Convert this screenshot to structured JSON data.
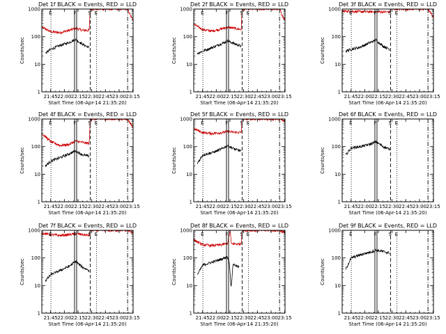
{
  "chart_data": [
    {
      "type": "line",
      "title": "Det 1f BLACK = Events, RED = LLD",
      "ylabel": "Counts/sec",
      "xlabel": "Start Time (06-Apr-14 21:35:20)",
      "x_ticks": [
        "21:45",
        "22:00",
        "22:15",
        "22:30",
        "22:45",
        "23:00",
        "23:15"
      ],
      "y_ticks": [
        "1",
        "10",
        "100",
        "1000"
      ],
      "y_scale": "log",
      "ylim": [
        1,
        1000
      ],
      "xlim_minutes": [
        0,
        100
      ],
      "marker_letters": [
        "E",
        "F",
        "S",
        "E"
      ],
      "marker_minutes": [
        10,
        37,
        53,
        60
      ],
      "marker_styles": [
        "dotted",
        "solid",
        "dashed",
        "dotted"
      ],
      "end_line_minute": 94,
      "series": [
        {
          "color": "#000000",
          "trend": [
            [
              4,
              25
            ],
            [
              10,
              35
            ],
            [
              20,
              48
            ],
            [
              30,
              62
            ],
            [
              37,
              80
            ],
            [
              45,
              52
            ],
            [
              52,
              40
            ]
          ]
        },
        {
          "color": "#cc0000",
          "trend": [
            [
              0,
              220
            ],
            [
              10,
              150
            ],
            [
              20,
              140
            ],
            [
              30,
              170
            ],
            [
              37,
              200
            ],
            [
              45,
              170
            ],
            [
              52,
              170
            ],
            [
              53,
              1000
            ],
            [
              94,
              1000
            ],
            [
              97,
              600
            ],
            [
              100,
              400
            ]
          ]
        }
      ]
    },
    {
      "type": "line",
      "title": "Det 2f BLACK = Events, RED = LLD",
      "ylabel": "Counts/sec",
      "xlabel": "Start Time (06-Apr-14 21:35:20)",
      "x_ticks": [
        "21:45",
        "22:00",
        "22:15",
        "22:30",
        "22:45",
        "23:00",
        "23:15"
      ],
      "y_ticks": [
        "1",
        "10",
        "100",
        "1000"
      ],
      "y_scale": "log",
      "ylim": [
        1,
        1000
      ],
      "xlim_minutes": [
        0,
        100
      ],
      "marker_letters": [
        "E",
        "F",
        "S",
        "E"
      ],
      "marker_minutes": [
        10,
        37,
        53,
        60
      ],
      "marker_styles": [
        "dotted",
        "solid",
        "dashed",
        "dotted"
      ],
      "end_line_minute": 94,
      "series": [
        {
          "color": "#000000",
          "trend": [
            [
              4,
              25
            ],
            [
              10,
              30
            ],
            [
              20,
              40
            ],
            [
              30,
              55
            ],
            [
              37,
              70
            ],
            [
              45,
              55
            ],
            [
              52,
              45
            ]
          ]
        },
        {
          "color": "#cc0000",
          "trend": [
            [
              0,
              280
            ],
            [
              10,
              180
            ],
            [
              20,
              160
            ],
            [
              30,
              190
            ],
            [
              37,
              220
            ],
            [
              45,
              200
            ],
            [
              52,
              180
            ],
            [
              53,
              1000
            ],
            [
              94,
              1000
            ],
            [
              97,
              600
            ],
            [
              100,
              400
            ]
          ]
        }
      ]
    },
    {
      "type": "line",
      "title": "Det 3f BLACK = Events, RED = LLD",
      "ylabel": "Counts/sec",
      "xlabel": "Start Time (06-Apr-14 21:35:20)",
      "x_ticks": [
        "21:45",
        "22:00",
        "22:15",
        "22:30",
        "22:45",
        "23:00",
        "23:15"
      ],
      "y_ticks": [
        "1",
        "10",
        "100",
        "1000"
      ],
      "y_scale": "log",
      "ylim": [
        1,
        1000
      ],
      "xlim_minutes": [
        0,
        100
      ],
      "marker_letters": [
        "E",
        "F",
        "S",
        "E"
      ],
      "marker_minutes": [
        10,
        37,
        53,
        60
      ],
      "marker_styles": [
        "dotted",
        "solid",
        "dashed",
        "dotted"
      ],
      "end_line_minute": 94,
      "series": [
        {
          "color": "#000000",
          "trend": [
            [
              4,
              30
            ],
            [
              10,
              35
            ],
            [
              20,
              42
            ],
            [
              30,
              60
            ],
            [
              37,
              75
            ],
            [
              45,
              45
            ],
            [
              52,
              35
            ]
          ]
        },
        {
          "color": "#cc0000",
          "trend": [
            [
              0,
              850
            ],
            [
              20,
              800
            ],
            [
              37,
              800
            ],
            [
              52,
              780
            ],
            [
              53,
              1000
            ],
            [
              94,
              1000
            ],
            [
              100,
              500
            ]
          ]
        }
      ]
    },
    {
      "type": "line",
      "title": "Det 4f BLACK = Events, RED = LLD",
      "ylabel": "Counts/sec",
      "xlabel": "Start Time (06-Apr-14 21:35:20)",
      "x_ticks": [
        "21:45",
        "22:00",
        "22:15",
        "22:30",
        "22:45",
        "23:00",
        "23:15"
      ],
      "y_ticks": [
        "1",
        "10",
        "100",
        "1000"
      ],
      "y_scale": "log",
      "ylim": [
        1,
        1000
      ],
      "xlim_minutes": [
        0,
        100
      ],
      "marker_letters": [
        "E",
        "F",
        "S",
        "E"
      ],
      "marker_minutes": [
        10,
        37,
        53,
        60
      ],
      "marker_styles": [
        "dotted",
        "solid",
        "dashed",
        "dotted"
      ],
      "end_line_minute": 94,
      "series": [
        {
          "color": "#000000",
          "trend": [
            [
              4,
              20
            ],
            [
              10,
              30
            ],
            [
              20,
              40
            ],
            [
              30,
              55
            ],
            [
              37,
              70
            ],
            [
              45,
              50
            ],
            [
              52,
              45
            ]
          ]
        },
        {
          "color": "#cc0000",
          "trend": [
            [
              0,
              300
            ],
            [
              10,
              150
            ],
            [
              20,
              110
            ],
            [
              30,
              120
            ],
            [
              37,
              160
            ],
            [
              45,
              140
            ],
            [
              52,
              130
            ],
            [
              53,
              1000
            ],
            [
              94,
              1000
            ],
            [
              97,
              700
            ],
            [
              100,
              500
            ]
          ]
        }
      ]
    },
    {
      "type": "line",
      "title": "Det 5f BLACK = Events, RED = LLD",
      "ylabel": "Counts/sec",
      "xlabel": "Start Time (06-Apr-14 21:35:20)",
      "x_ticks": [
        "21:45",
        "22:00",
        "22:15",
        "22:30",
        "22:45",
        "23:00",
        "23:15"
      ],
      "y_ticks": [
        "1",
        "10",
        "100",
        "1000"
      ],
      "y_scale": "log",
      "ylim": [
        1,
        1000
      ],
      "xlim_minutes": [
        0,
        100
      ],
      "marker_letters": [
        "E",
        "F",
        "S",
        "E"
      ],
      "marker_minutes": [
        10,
        37,
        53,
        60
      ],
      "marker_styles": [
        "dotted",
        "solid",
        "dashed",
        "dotted"
      ],
      "end_line_minute": 94,
      "series": [
        {
          "color": "#000000",
          "trend": [
            [
              4,
              25
            ],
            [
              10,
              50
            ],
            [
              20,
              60
            ],
            [
              30,
              80
            ],
            [
              37,
              110
            ],
            [
              45,
              80
            ],
            [
              52,
              70
            ]
          ]
        },
        {
          "color": "#cc0000",
          "trend": [
            [
              0,
              450
            ],
            [
              10,
              320
            ],
            [
              20,
              300
            ],
            [
              30,
              320
            ],
            [
              37,
              350
            ],
            [
              45,
              330
            ],
            [
              52,
              320
            ],
            [
              53,
              1000
            ],
            [
              94,
              1000
            ],
            [
              100,
              800
            ]
          ]
        }
      ]
    },
    {
      "type": "line",
      "title": "Det 6f BLACK = Events, RED = LLD",
      "ylabel": "Counts/sec",
      "xlabel": "Start Time (06-Apr-14 21:35:20)",
      "x_ticks": [
        "21:45",
        "22:00",
        "22:15",
        "22:30",
        "22:45",
        "23:00",
        "23:15"
      ],
      "y_ticks": [
        "1",
        "10",
        "100",
        "1000"
      ],
      "y_scale": "log",
      "ylim": [
        1,
        1000
      ],
      "xlim_minutes": [
        0,
        100
      ],
      "marker_letters": [
        "E",
        "F",
        "S",
        "E"
      ],
      "marker_minutes": [
        10,
        37,
        53,
        60
      ],
      "marker_styles": [
        "dotted",
        "solid",
        "dashed",
        "dotted"
      ],
      "end_line_minute": 94,
      "series": [
        {
          "color": "#000000",
          "trend": [
            [
              4,
              50
            ],
            [
              10,
              90
            ],
            [
              20,
              100
            ],
            [
              30,
              120
            ],
            [
              37,
              150
            ],
            [
              45,
              100
            ],
            [
              52,
              80
            ]
          ]
        }
      ]
    },
    {
      "type": "line",
      "title": "Det 7f BLACK = Events, RED = LLD",
      "ylabel": "Counts/sec",
      "xlabel": "Start Time (06-Apr-14 21:35:20)",
      "x_ticks": [
        "21:45",
        "22:00",
        "22:15",
        "22:30",
        "22:45",
        "23:00",
        "23:15"
      ],
      "y_ticks": [
        "1",
        "10",
        "100",
        "1000"
      ],
      "y_scale": "log",
      "ylim": [
        1,
        1000
      ],
      "xlim_minutes": [
        0,
        100
      ],
      "marker_letters": [
        "E",
        "F",
        "S",
        "E"
      ],
      "marker_minutes": [
        10,
        37,
        53,
        60
      ],
      "marker_styles": [
        "dotted",
        "solid",
        "dashed",
        "dotted"
      ],
      "end_line_minute": 94,
      "series": [
        {
          "color": "#000000",
          "trend": [
            [
              4,
              15
            ],
            [
              10,
              25
            ],
            [
              20,
              35
            ],
            [
              30,
              50
            ],
            [
              37,
              75
            ],
            [
              45,
              45
            ],
            [
              52,
              35
            ]
          ]
        },
        {
          "color": "#cc0000",
          "trend": [
            [
              0,
              800
            ],
            [
              10,
              700
            ],
            [
              20,
              650
            ],
            [
              30,
              700
            ],
            [
              37,
              750
            ],
            [
              45,
              700
            ],
            [
              52,
              650
            ],
            [
              53,
              1000
            ],
            [
              94,
              1000
            ],
            [
              100,
              800
            ]
          ]
        }
      ]
    },
    {
      "type": "line",
      "title": "Det 8f BLACK = Events, RED = LLD",
      "ylabel": "Counts/sec",
      "xlabel": "Start Time (06-Apr-14 21:35:20)",
      "x_ticks": [
        "21:45",
        "22:00",
        "22:15",
        "22:30",
        "22:45",
        "23:00",
        "23:15"
      ],
      "y_ticks": [
        "1",
        "10",
        "100",
        "1000"
      ],
      "y_scale": "log",
      "ylim": [
        1,
        1000
      ],
      "xlim_minutes": [
        0,
        100
      ],
      "marker_letters": [
        "E",
        "F",
        "S",
        "E"
      ],
      "marker_minutes": [
        10,
        37,
        53,
        60
      ],
      "marker_styles": [
        "dotted",
        "solid",
        "dashed",
        "dotted"
      ],
      "end_line_minute": 94,
      "series": [
        {
          "color": "#000000",
          "trend": [
            [
              4,
              25
            ],
            [
              10,
              55
            ],
            [
              20,
              70
            ],
            [
              30,
              90
            ],
            [
              37,
              110
            ],
            [
              39,
              70
            ],
            [
              41,
              8
            ],
            [
              43,
              60
            ],
            [
              50,
              45
            ]
          ]
        },
        {
          "color": "#cc0000",
          "trend": [
            [
              0,
              450
            ],
            [
              10,
              300
            ],
            [
              20,
              280
            ],
            [
              30,
              300
            ],
            [
              37,
              330
            ],
            [
              40,
              1000
            ],
            [
              41,
              330
            ],
            [
              48,
              320
            ],
            [
              52,
              330
            ],
            [
              53,
              1000
            ],
            [
              94,
              1000
            ],
            [
              100,
              800
            ]
          ]
        }
      ]
    },
    {
      "type": "line",
      "title": "Det 9f BLACK = Events, RED = LLD",
      "ylabel": "Counts/sec",
      "xlabel": "Start Time (06-Apr-14 21:35:20)",
      "x_ticks": [
        "21:45",
        "22:00",
        "22:15",
        "22:30",
        "22:45",
        "23:00",
        "23:15"
      ],
      "y_ticks": [
        "1",
        "10",
        "100",
        "1000"
      ],
      "y_scale": "log",
      "ylim": [
        1,
        1000
      ],
      "xlim_minutes": [
        0,
        100
      ],
      "marker_letters": [
        "E",
        "F",
        "S",
        "E"
      ],
      "marker_minutes": [
        10,
        37,
        53,
        60
      ],
      "marker_styles": [
        "dotted",
        "solid",
        "dashed",
        "dotted"
      ],
      "end_line_minute": 94,
      "series": [
        {
          "color": "#000000",
          "trend": [
            [
              4,
              40
            ],
            [
              10,
              100
            ],
            [
              20,
              130
            ],
            [
              30,
              160
            ],
            [
              37,
              190
            ],
            [
              45,
              170
            ],
            [
              52,
              150
            ]
          ]
        }
      ]
    }
  ]
}
